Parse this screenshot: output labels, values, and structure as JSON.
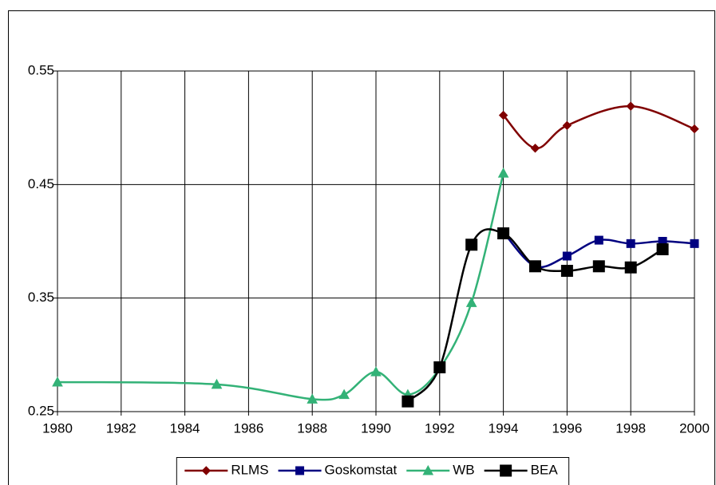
{
  "chart_data": {
    "type": "line",
    "xlim": [
      1980,
      2000
    ],
    "xticks": [
      1980,
      1982,
      1984,
      1986,
      1988,
      1990,
      1992,
      1994,
      1996,
      1998,
      2000
    ],
    "ylim": [
      0.25,
      0.55
    ],
    "yticks": [
      0.25,
      0.35,
      0.45,
      0.55
    ],
    "grid": true,
    "legend": "bottom",
    "series": [
      {
        "name": "RLMS",
        "color": "#800000",
        "marker": "diamond",
        "x": [
          1994,
          1995,
          1996,
          1998,
          2000
        ],
        "values": [
          0.511,
          0.482,
          0.502,
          0.519,
          0.499
        ]
      },
      {
        "name": "Goskomstat",
        "color": "#000080",
        "marker": "square",
        "x": [
          1994,
          1995,
          1996,
          1997,
          1998,
          1999,
          2000
        ],
        "values": [
          0.408,
          0.378,
          0.387,
          0.401,
          0.398,
          0.4,
          0.398
        ]
      },
      {
        "name": "WB",
        "color": "#33b277",
        "marker": "triangle",
        "x": [
          1980,
          1985,
          1988,
          1989,
          1990,
          1991,
          1992,
          1993,
          1994
        ],
        "values": [
          0.276,
          0.274,
          0.261,
          0.265,
          0.285,
          0.265,
          0.288,
          0.346,
          0.46
        ]
      },
      {
        "name": "BEA",
        "color": "#000000",
        "marker": "bigsquare",
        "x": [
          1991,
          1992,
          1993,
          1994,
          1995,
          1996,
          1997,
          1998,
          1999
        ],
        "values": [
          0.259,
          0.289,
          0.397,
          0.407,
          0.378,
          0.374,
          0.378,
          0.377,
          0.393
        ]
      }
    ]
  }
}
